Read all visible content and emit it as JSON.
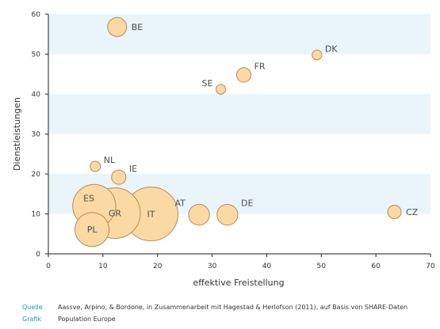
{
  "chart_data": {
    "type": "scatter",
    "title": "",
    "xlabel": "effektive Freistellung",
    "ylabel": "Dienstleistungen",
    "xlim": [
      0,
      70
    ],
    "ylim": [
      0,
      60
    ],
    "x_ticks": [
      0,
      10,
      20,
      30,
      40,
      50,
      60,
      70
    ],
    "y_ticks": [
      0,
      10,
      20,
      30,
      40,
      50,
      60
    ],
    "x_tick_labels": [
      "0",
      "10",
      "20",
      "30",
      "40",
      "50",
      "60",
      "70"
    ],
    "y_tick_labels": [
      "0",
      "10",
      "20",
      "30",
      "40",
      "50",
      "60"
    ],
    "grid": "alternating horizontal bands",
    "bubble_size": "relative bubble area (unitless)",
    "points": [
      {
        "label": "BE",
        "x": 12.6,
        "y": 56.8,
        "size": 1.0,
        "label_pos": "right"
      },
      {
        "label": "DK",
        "x": 49.2,
        "y": 49.8,
        "size": 0.26,
        "label_pos": "top-right"
      },
      {
        "label": "FR",
        "x": 35.8,
        "y": 44.8,
        "size": 0.57,
        "label_pos": "top-right"
      },
      {
        "label": "SE",
        "x": 31.6,
        "y": 41.2,
        "size": 0.26,
        "label_pos": "top-left"
      },
      {
        "label": "NL",
        "x": 8.6,
        "y": 21.9,
        "size": 0.3,
        "label_pos": "top-right"
      },
      {
        "label": "IE",
        "x": 12.9,
        "y": 19.2,
        "size": 0.57,
        "label_pos": "top-right"
      },
      {
        "label": "ES",
        "x": 8.4,
        "y": 12.0,
        "size": 5.1,
        "label_pos": "center-left"
      },
      {
        "label": "GR",
        "x": 12.2,
        "y": 10.2,
        "size": 7.1,
        "label_pos": "center"
      },
      {
        "label": "IT",
        "x": 18.8,
        "y": 10.0,
        "size": 8.0,
        "label_pos": "center"
      },
      {
        "label": "AT",
        "x": 27.6,
        "y": 9.8,
        "size": 1.2,
        "label_pos": "top-left"
      },
      {
        "label": "DE",
        "x": 32.8,
        "y": 9.8,
        "size": 1.2,
        "label_pos": "top-right"
      },
      {
        "label": "PL",
        "x": 8.0,
        "y": 6.1,
        "size": 3.2,
        "label_pos": "center"
      },
      {
        "label": "CZ",
        "x": 63.4,
        "y": 10.5,
        "size": 0.5,
        "label_pos": "right"
      }
    ],
    "colors": {
      "bubble_fill": "#fbd9a2",
      "bubble_stroke": "#b9895a",
      "band": "#e9f4fb",
      "axis": "#1f1f1f",
      "label": "#4d4d4d"
    }
  },
  "footer": {
    "source_key": "Quelle",
    "source_text": "Aassve, Arpino, & Bordone, in Zusammenarbeit mit Hagestad & Herlofson (2011), auf Basis von SHARE-Daten",
    "graphic_key": "Grafik",
    "graphic_text": "Population Europe",
    "key_color": "#1a93c4"
  }
}
